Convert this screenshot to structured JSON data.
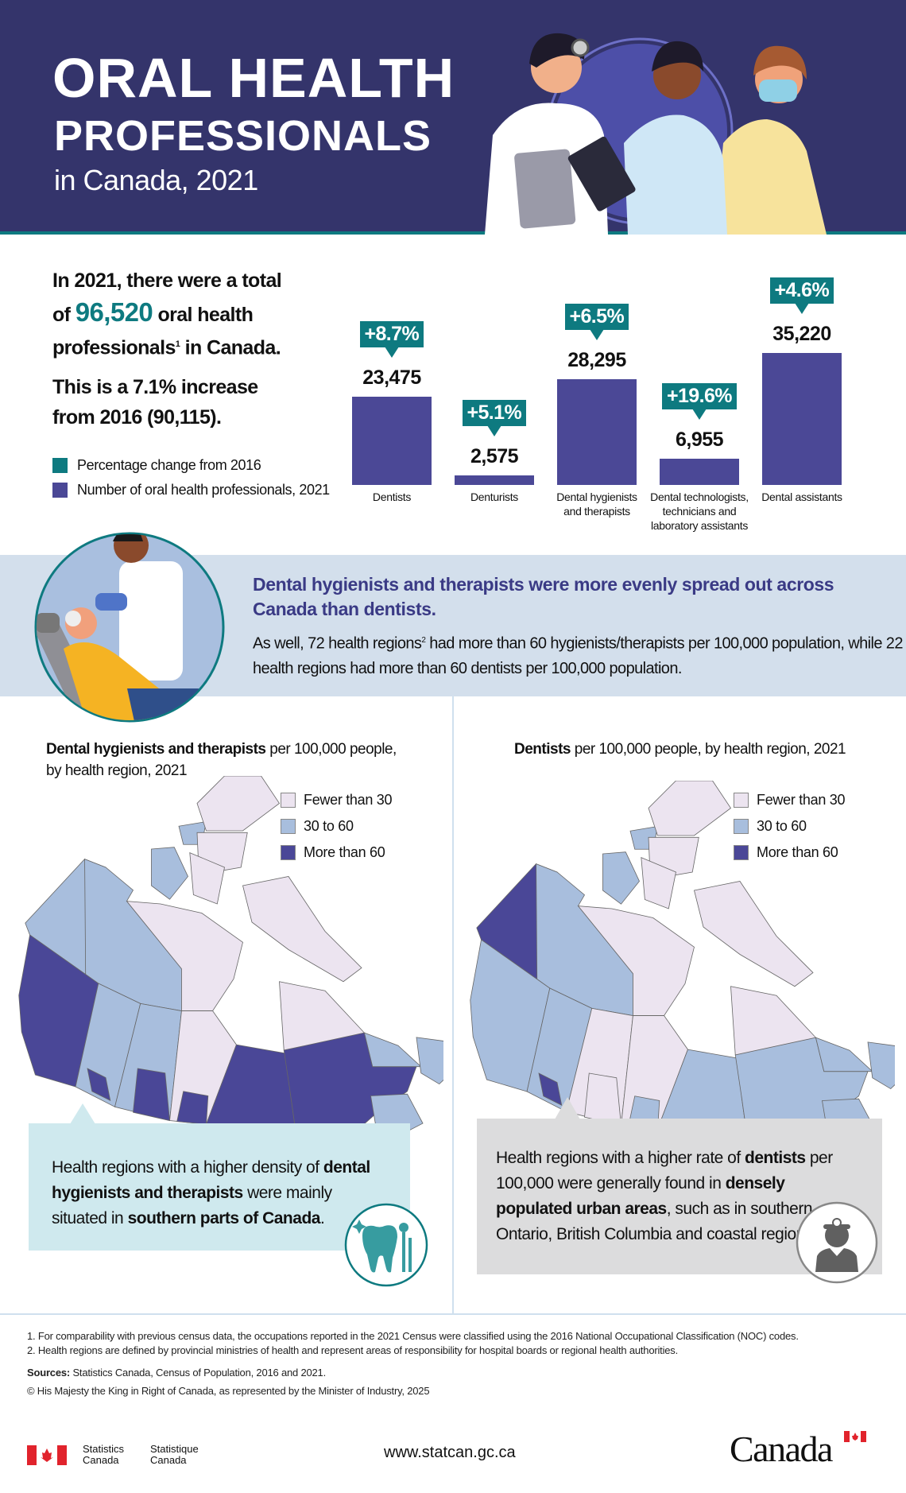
{
  "colors": {
    "header_bg": "#34346b",
    "teal": "#0e7a80",
    "bar": "#4b4896",
    "band": "#d3dfec",
    "fewer": "#ece4f0",
    "mid": "#a8bedd",
    "more": "#4a4797"
  },
  "header": {
    "title_line1": "ORAL HEALTH",
    "title_line2": "PROFESSIONALS",
    "title_line3": "in Canada, 2021"
  },
  "intro": {
    "line1": "In 2021, there were a total",
    "line2_pre": "of ",
    "total": "96,520",
    "line2_post": " oral health",
    "line3_pre": "professionals",
    "line3_sup": "1",
    "line3_post": " in Canada.",
    "line4": "This is a 7.1% increase",
    "line5": "from 2016 (90,115)."
  },
  "legend": {
    "pct": "Percentage change from 2016",
    "num": "Number of oral health professionals, 2021"
  },
  "chart_data": {
    "type": "bar",
    "categories": [
      "Dentists",
      "Denturists",
      "Dental hygienists and therapists",
      "Dental technologists, technicians and laboratory assistants",
      "Dental assistants"
    ],
    "category_lines": [
      [
        "Dentists"
      ],
      [
        "Denturists"
      ],
      [
        "Dental hygienists",
        "and therapists"
      ],
      [
        "Dental technologists,",
        "technicians and",
        "laboratory assistants"
      ],
      [
        "Dental assistants"
      ]
    ],
    "series": [
      {
        "name": "Number of oral health professionals, 2021",
        "values": [
          23475,
          2575,
          28295,
          6955,
          35220
        ],
        "labels": [
          "23,475",
          "2,575",
          "28,295",
          "6,955",
          "35,220"
        ]
      },
      {
        "name": "Percentage change from 2016",
        "values": [
          8.7,
          5.1,
          6.5,
          19.6,
          4.6
        ],
        "labels": [
          "+8.7%",
          "+5.1%",
          "+6.5%",
          "+19.6%",
          "+4.6%"
        ]
      }
    ]
  },
  "band": {
    "heading": "Dental hygienists and therapists were more evenly spread out across Canada than dentists.",
    "body_pre": "As well, 72 health regions",
    "body_sup": "2",
    "body_post": " had more than 60 hygienists/therapists per 100,000 population, while 22 health regions had more than 60 dentists per 100,000 population."
  },
  "maps": [
    {
      "title_bold": "Dental hygienists and therapists",
      "title_rest": " per 100,000 people, by health region, 2021",
      "legend": [
        "Fewer than 30",
        "30 to 60",
        "More than 60"
      ],
      "regions": {
        "yukon": "mid",
        "nwt": "mid",
        "nunavut": "fewer",
        "arctic_west": "mid",
        "arctic_east": "fewer",
        "bc": "more",
        "alberta": "mid",
        "alberta_south": "more",
        "sask": "mid",
        "sask_south": "more",
        "manitoba": "fewer",
        "manitoba_south": "more",
        "ontario": "more",
        "quebec_north": "fewer",
        "quebec_south": "more",
        "labrador": "mid",
        "newfoundland": "mid",
        "maritimes": "mid"
      },
      "callout": {
        "p1": "Health regions with a higher density of ",
        "b1": "dental hygienists and therapists",
        "p2": " were mainly situated in ",
        "b2": "southern parts of Canada",
        "p3": "."
      },
      "icon": "tooth-icon"
    },
    {
      "title_bold": "Dentists",
      "title_rest": " per 100,000 people, by health region, 2021",
      "legend": [
        "Fewer than 30",
        "30 to 60",
        "More than 60"
      ],
      "regions": {
        "yukon": "more",
        "nwt": "mid",
        "nunavut": "fewer",
        "arctic_west": "mid",
        "arctic_east": "fewer",
        "bc": "mid",
        "alberta": "mid",
        "alberta_south": "more",
        "sask": "fewer",
        "sask_south": "fewer",
        "manitoba": "fewer",
        "manitoba_south": "mid",
        "ontario": "mid",
        "quebec_north": "fewer",
        "quebec_south": "mid",
        "labrador": "mid",
        "newfoundland": "mid",
        "maritimes": "mid"
      },
      "callout": {
        "p1": "Health regions with a higher rate of ",
        "b1": "dentists",
        "p2": " per 100,000 were generally found in ",
        "b2": "densely populated urban areas",
        "p3": ", such as in southern Ontario, British Columbia and coastal regions."
      },
      "icon": "dentist-icon"
    }
  ],
  "footer": {
    "note1": "1. For comparability with previous census data, the occupations reported in the 2021 Census were classified using the 2016 National Occupational Classification (NOC) codes.",
    "note2": "2. Health regions are defined by provincial ministries of health and represent areas of responsibility for hospital boards or regional health authorities.",
    "sources_label": "Sources:",
    "sources": " Statistics Canada, Census of Population, 2016 and 2021.",
    "copyright": "© His Majesty the King in Right of Canada, as represented by the Minister of Industry, 2025",
    "logo_en": [
      "Statistics",
      "Canada"
    ],
    "logo_fr": [
      "Statistique",
      "Canada"
    ],
    "url": "www.statcan.gc.ca",
    "wordmark": "Canada"
  }
}
